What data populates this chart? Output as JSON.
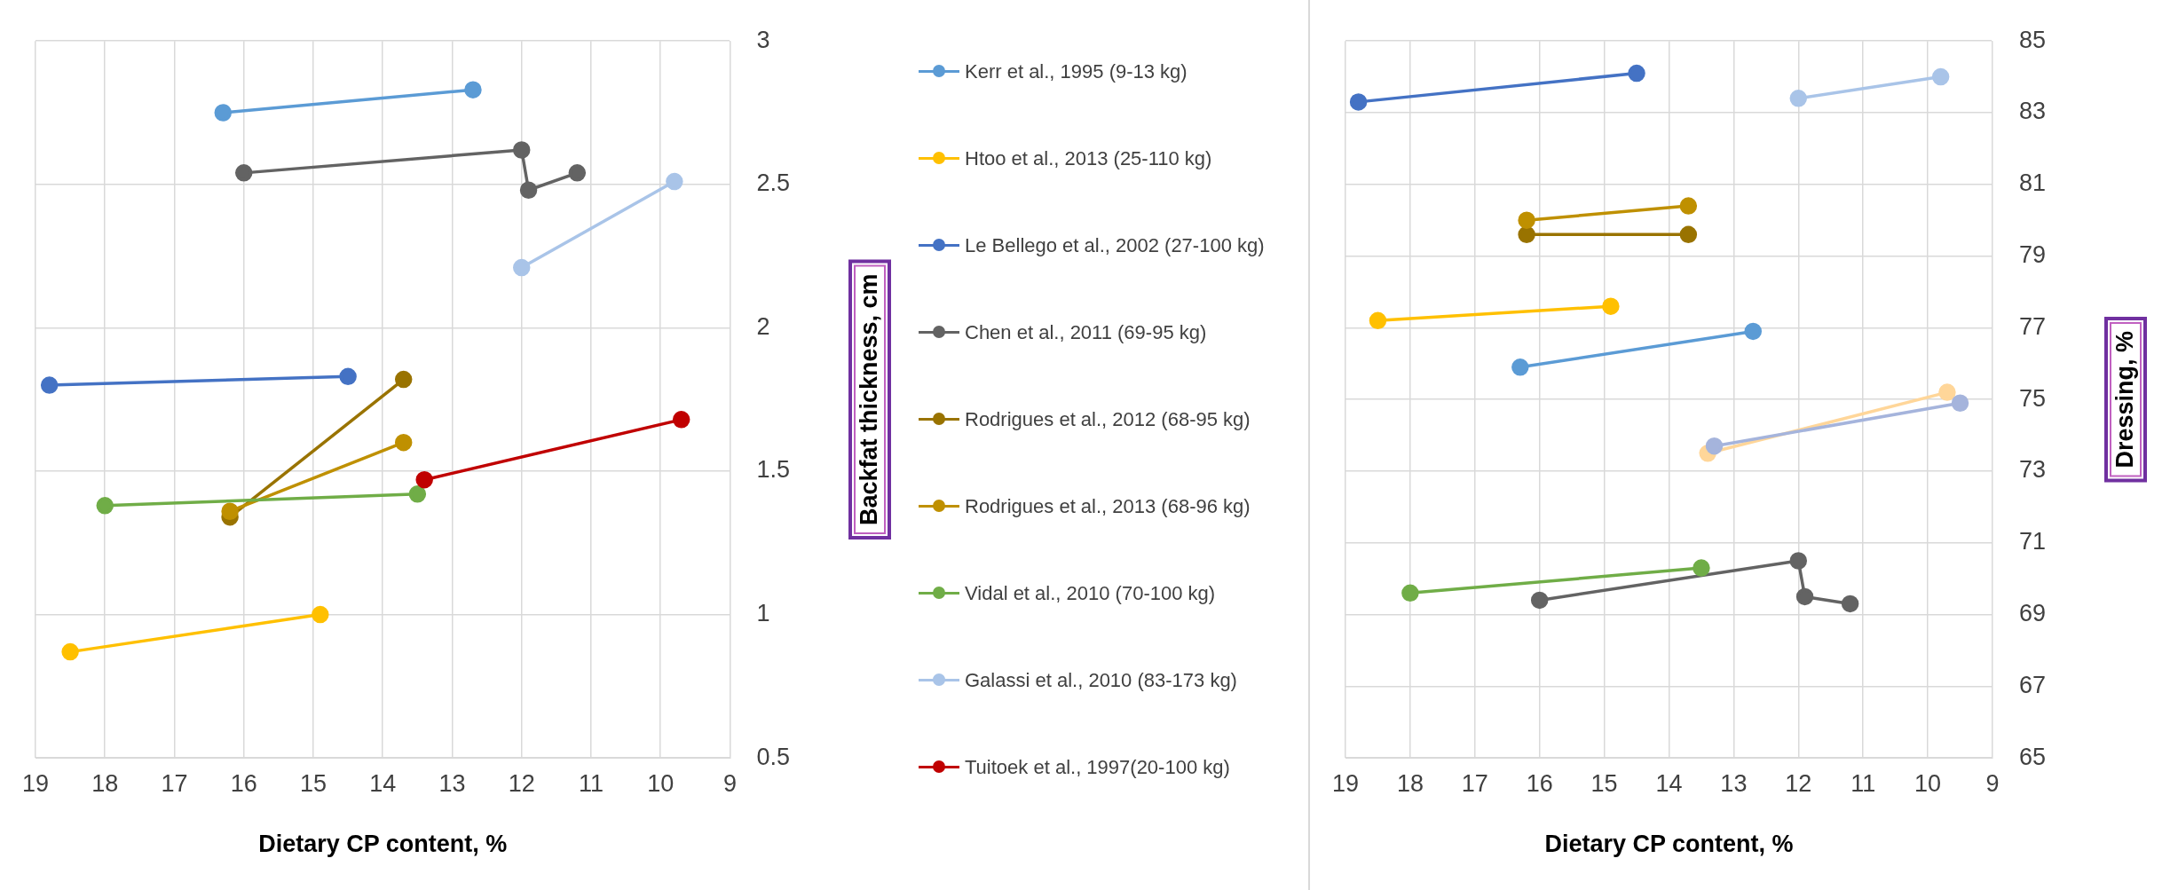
{
  "chart_data": [
    {
      "type": "line",
      "xlabel": "Dietary CP content, %",
      "ylabel": "Backfat thickness, cm",
      "xlim": [
        19,
        9
      ],
      "xticks": [
        19,
        18,
        17,
        16,
        15,
        14,
        13,
        12,
        11,
        10,
        9
      ],
      "ylim": [
        0.5,
        3
      ],
      "yticks": [
        0.5,
        1,
        1.5,
        2,
        2.5,
        3
      ],
      "grid": true,
      "legend": "right",
      "marker": "circle",
      "line_style": "solid",
      "series": [
        {
          "name": "Kerr et al., 1995 (9-13 kg)",
          "color": "#5b9bd5",
          "x": [
            16.3,
            12.7
          ],
          "values": [
            2.75,
            2.83
          ]
        },
        {
          "name": "Htoo et al., 2013 (25-110 kg)",
          "color": "#ffc000",
          "x": [
            18.5,
            14.9
          ],
          "values": [
            0.87,
            1.0
          ]
        },
        {
          "name": "Le Bellego et al., 2002 (27-100 kg)",
          "color": "#4472c4",
          "x": [
            18.8,
            14.5
          ],
          "values": [
            1.8,
            1.83
          ]
        },
        {
          "name": "Chen et al., 2011 (69-95 kg)",
          "color": "#636363",
          "x": [
            16.0,
            12.0,
            11.9,
            11.2
          ],
          "values": [
            2.54,
            2.62,
            2.48,
            2.54
          ]
        },
        {
          "name": "Rodrigues et al., 2012 (68-95 kg)",
          "color": "#997300",
          "x": [
            16.2,
            13.7
          ],
          "values": [
            1.34,
            1.82
          ]
        },
        {
          "name": "Rodrigues et al., 2013 (68-96 kg)",
          "color": "#bf9000",
          "x": [
            16.2,
            13.7
          ],
          "values": [
            1.36,
            1.6
          ]
        },
        {
          "name": "Vidal et al., 2010 (70-100 kg)",
          "color": "#70ad47",
          "x": [
            18.0,
            13.5
          ],
          "values": [
            1.38,
            1.42
          ]
        },
        {
          "name": "Galassi et al., 2010 (83-173 kg)",
          "color": "#a9c4e8",
          "x": [
            12.0,
            9.8
          ],
          "values": [
            2.21,
            2.51
          ]
        },
        {
          "name": "Tuitoek et al., 1997(20-100 kg)",
          "color": "#c00000",
          "x": [
            13.4,
            9.7
          ],
          "values": [
            1.47,
            1.68
          ]
        }
      ]
    },
    {
      "type": "line",
      "xlabel": "Dietary CP content, %",
      "ylabel": "Dressing, %",
      "xlim": [
        19,
        9
      ],
      "xticks": [
        19,
        18,
        17,
        16,
        15,
        14,
        13,
        12,
        11,
        10,
        9
      ],
      "ylim": [
        65,
        85
      ],
      "yticks": [
        65,
        67,
        69,
        71,
        73,
        75,
        77,
        79,
        81,
        83,
        85
      ],
      "grid": true,
      "marker": "circle",
      "line_style": "solid",
      "series": [
        {
          "color": "#5b9bd5",
          "x": [
            16.3,
            12.7
          ],
          "values": [
            75.9,
            76.9
          ]
        },
        {
          "color": "#ffc000",
          "x": [
            18.5,
            14.9
          ],
          "values": [
            77.2,
            77.6
          ]
        },
        {
          "color": "#4472c4",
          "x": [
            18.8,
            14.5
          ],
          "values": [
            83.3,
            84.1
          ]
        },
        {
          "color": "#636363",
          "x": [
            16.0,
            12.0,
            11.9,
            11.2
          ],
          "values": [
            69.4,
            70.5,
            69.5,
            69.3
          ]
        },
        {
          "color": "#997300",
          "x": [
            16.2,
            13.7
          ],
          "values": [
            79.6,
            79.6
          ]
        },
        {
          "color": "#bf9000",
          "x": [
            16.2,
            13.7
          ],
          "values": [
            80.0,
            80.4
          ]
        },
        {
          "color": "#70ad47",
          "x": [
            18.0,
            13.5
          ],
          "values": [
            69.6,
            70.3
          ]
        },
        {
          "color": "#a9c4e8",
          "x": [
            12.0,
            9.8
          ],
          "values": [
            83.4,
            84.0
          ]
        },
        {
          "color": "#ffd699",
          "x": [
            13.4,
            9.7
          ],
          "values": [
            73.5,
            75.2
          ]
        },
        {
          "color": "#a5b4dc",
          "x": [
            13.3,
            9.5
          ],
          "values": [
            73.7,
            74.9
          ]
        }
      ]
    }
  ]
}
